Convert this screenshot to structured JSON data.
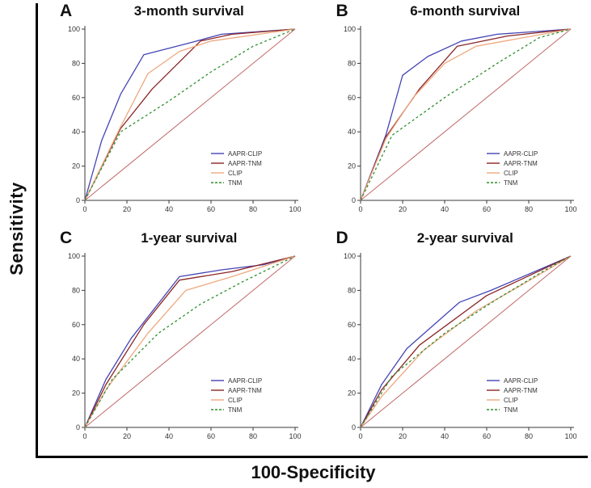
{
  "figure": {
    "ylabel": "Sensitivity",
    "xlabel": "100-Specificity"
  },
  "legend": [
    "AAPR-CLIP",
    "AAPR-TNM",
    "CLIP",
    "TNM"
  ],
  "colors": {
    "AAPR-CLIP": "#4444b4",
    "AAPR-TNM": "#8b2525",
    "CLIP": "#eea87e",
    "TNM": "#2f8f2f",
    "reference": "#c06868",
    "axis": "#3a3a3a"
  },
  "chart_data": [
    {
      "type": "line",
      "panel_label": "A",
      "title": "3-month survival",
      "xlabel": "100-Specificity",
      "ylabel": "Sensitivity",
      "xlim": [
        0,
        100
      ],
      "ylim": [
        0,
        100
      ],
      "xticks": [
        0,
        20,
        40,
        60,
        80,
        100
      ],
      "yticks": [
        0,
        20,
        40,
        60,
        80,
        100
      ],
      "legend_position": "bottom-right",
      "series": [
        {
          "name": "AAPR-CLIP",
          "style": "solid",
          "points": [
            [
              0,
              0
            ],
            [
              8,
              35
            ],
            [
              17,
              62
            ],
            [
              28,
              85
            ],
            [
              50,
              92
            ],
            [
              65,
              97
            ],
            [
              100,
              100
            ]
          ]
        },
        {
          "name": "AAPR-TNM",
          "style": "solid",
          "points": [
            [
              0,
              0
            ],
            [
              17,
              42
            ],
            [
              32,
              65
            ],
            [
              55,
              93
            ],
            [
              70,
              97
            ],
            [
              100,
              100
            ]
          ]
        },
        {
          "name": "CLIP",
          "style": "solid",
          "points": [
            [
              0,
              0
            ],
            [
              17,
              43
            ],
            [
              30,
              74
            ],
            [
              45,
              87
            ],
            [
              60,
              93
            ],
            [
              100,
              100
            ]
          ]
        },
        {
          "name": "TNM",
          "style": "dashed",
          "points": [
            [
              0,
              0
            ],
            [
              17,
              40
            ],
            [
              40,
              58
            ],
            [
              60,
              75
            ],
            [
              80,
              90
            ],
            [
              100,
              100
            ]
          ]
        },
        {
          "name": "reference",
          "style": "solid",
          "show_in_legend": false,
          "width": 1,
          "points": [
            [
              0,
              0
            ],
            [
              100,
              100
            ]
          ]
        }
      ]
    },
    {
      "type": "line",
      "panel_label": "B",
      "title": "6-month survival",
      "xlabel": "100-Specificity",
      "ylabel": "Sensitivity",
      "xlim": [
        0,
        100
      ],
      "ylim": [
        0,
        100
      ],
      "xticks": [
        0,
        20,
        40,
        60,
        80,
        100
      ],
      "yticks": [
        0,
        20,
        40,
        60,
        80,
        100
      ],
      "legend_position": "bottom-right",
      "series": [
        {
          "name": "AAPR-CLIP",
          "style": "solid",
          "points": [
            [
              0,
              0
            ],
            [
              12,
              38
            ],
            [
              20,
              73
            ],
            [
              32,
              84
            ],
            [
              48,
              93
            ],
            [
              65,
              97
            ],
            [
              100,
              100
            ]
          ]
        },
        {
          "name": "AAPR-TNM",
          "style": "solid",
          "points": [
            [
              0,
              0
            ],
            [
              12,
              37
            ],
            [
              28,
              65
            ],
            [
              46,
              90
            ],
            [
              70,
              96
            ],
            [
              100,
              100
            ]
          ]
        },
        {
          "name": "CLIP",
          "style": "solid",
          "points": [
            [
              0,
              0
            ],
            [
              12,
              36
            ],
            [
              25,
              60
            ],
            [
              40,
              80
            ],
            [
              55,
              90
            ],
            [
              100,
              100
            ]
          ]
        },
        {
          "name": "TNM",
          "style": "dashed",
          "points": [
            [
              0,
              0
            ],
            [
              15,
              38
            ],
            [
              40,
              60
            ],
            [
              65,
              80
            ],
            [
              85,
              95
            ],
            [
              100,
              100
            ]
          ]
        },
        {
          "name": "reference",
          "style": "solid",
          "show_in_legend": false,
          "width": 1,
          "points": [
            [
              0,
              0
            ],
            [
              100,
              100
            ]
          ]
        }
      ]
    },
    {
      "type": "line",
      "panel_label": "C",
      "title": "1-year survival",
      "xlabel": "100-Specificity",
      "ylabel": "Sensitivity",
      "xlim": [
        0,
        100
      ],
      "ylim": [
        0,
        100
      ],
      "xticks": [
        0,
        20,
        40,
        60,
        80,
        100
      ],
      "yticks": [
        0,
        20,
        40,
        60,
        80,
        100
      ],
      "legend_position": "bottom-right",
      "series": [
        {
          "name": "AAPR-CLIP",
          "style": "solid",
          "points": [
            [
              0,
              0
            ],
            [
              10,
              28
            ],
            [
              22,
              52
            ],
            [
              45,
              88
            ],
            [
              65,
              92
            ],
            [
              85,
              95
            ],
            [
              100,
              100
            ]
          ]
        },
        {
          "name": "AAPR-TNM",
          "style": "solid",
          "points": [
            [
              0,
              0
            ],
            [
              10,
              25
            ],
            [
              28,
              60
            ],
            [
              45,
              86
            ],
            [
              70,
              91
            ],
            [
              100,
              100
            ]
          ]
        },
        {
          "name": "CLIP",
          "style": "solid",
          "points": [
            [
              0,
              0
            ],
            [
              10,
              22
            ],
            [
              30,
              55
            ],
            [
              48,
              80
            ],
            [
              70,
              88
            ],
            [
              100,
              100
            ]
          ]
        },
        {
          "name": "TNM",
          "style": "dashed",
          "points": [
            [
              0,
              0
            ],
            [
              13,
              28
            ],
            [
              35,
              55
            ],
            [
              55,
              72
            ],
            [
              75,
              85
            ],
            [
              100,
              100
            ]
          ]
        },
        {
          "name": "reference",
          "style": "solid",
          "show_in_legend": false,
          "width": 1,
          "points": [
            [
              0,
              0
            ],
            [
              100,
              100
            ]
          ]
        }
      ]
    },
    {
      "type": "line",
      "panel_label": "D",
      "title": "2-year survival",
      "xlabel": "100-Specificity",
      "ylabel": "Sensitivity",
      "xlim": [
        0,
        100
      ],
      "ylim": [
        0,
        100
      ],
      "xticks": [
        0,
        20,
        40,
        60,
        80,
        100
      ],
      "yticks": [
        0,
        20,
        40,
        60,
        80,
        100
      ],
      "legend_position": "bottom-right",
      "series": [
        {
          "name": "AAPR-CLIP",
          "style": "solid",
          "points": [
            [
              0,
              0
            ],
            [
              10,
              25
            ],
            [
              22,
              46
            ],
            [
              47,
              73
            ],
            [
              62,
              80
            ],
            [
              100,
              100
            ]
          ]
        },
        {
          "name": "AAPR-TNM",
          "style": "solid",
          "points": [
            [
              0,
              0
            ],
            [
              10,
              22
            ],
            [
              28,
              48
            ],
            [
              60,
              77
            ],
            [
              100,
              100
            ]
          ]
        },
        {
          "name": "CLIP",
          "style": "solid",
          "points": [
            [
              0,
              0
            ],
            [
              10,
              18
            ],
            [
              30,
              45
            ],
            [
              55,
              68
            ],
            [
              75,
              82
            ],
            [
              100,
              100
            ]
          ]
        },
        {
          "name": "TNM",
          "style": "dashed",
          "points": [
            [
              0,
              0
            ],
            [
              15,
              30
            ],
            [
              40,
              55
            ],
            [
              65,
              75
            ],
            [
              88,
              92
            ],
            [
              100,
              100
            ]
          ]
        },
        {
          "name": "reference",
          "style": "solid",
          "show_in_legend": false,
          "width": 1,
          "points": [
            [
              0,
              0
            ],
            [
              100,
              100
            ]
          ]
        }
      ]
    }
  ]
}
